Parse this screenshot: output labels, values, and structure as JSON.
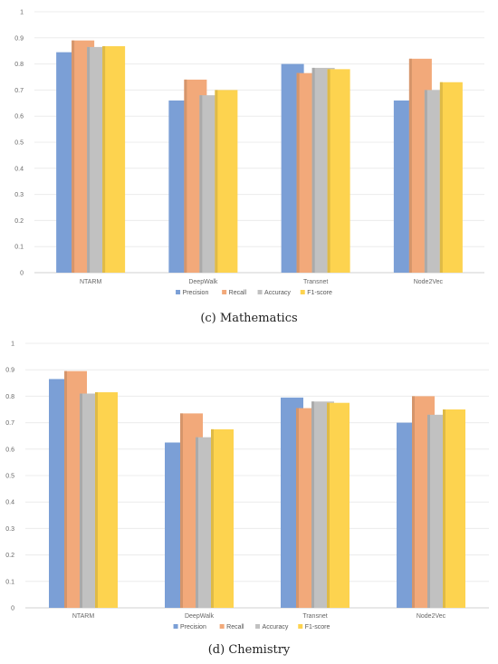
{
  "chart_data": [
    {
      "type": "bar",
      "caption": "(c) Mathematics",
      "categories": [
        "NTARM",
        "DeepWalk",
        "Transnet",
        "Node2Vec"
      ],
      "series": [
        {
          "name": "Precision",
          "color": "#7B9FD6",
          "values": [
            0.845,
            0.66,
            0.8,
            0.66
          ]
        },
        {
          "name": "Recall",
          "color": "#F2A97A",
          "values": [
            0.89,
            0.74,
            0.765,
            0.82
          ]
        },
        {
          "name": "Accuracy",
          "color": "#C1C1C1",
          "values": [
            0.865,
            0.68,
            0.785,
            0.7
          ]
        },
        {
          "name": "F1-score",
          "color": "#FDD34F",
          "values": [
            0.868,
            0.7,
            0.78,
            0.73
          ]
        }
      ],
      "ylim": [
        0,
        1
      ],
      "yticks": [
        "0",
        "0.1",
        "0.2",
        "0.3",
        "0.4",
        "0.5",
        "0.6",
        "0.7",
        "0.8",
        "0.9",
        "1"
      ],
      "grid": true,
      "legend_position": "bottom-center"
    },
    {
      "type": "bar",
      "caption": "(d) Chemistry",
      "categories": [
        "NTARM",
        "DeepWalk",
        "Transnet",
        "Node2Vec"
      ],
      "series": [
        {
          "name": "Precision",
          "color": "#7B9FD6",
          "values": [
            0.865,
            0.625,
            0.795,
            0.7
          ]
        },
        {
          "name": "Recall",
          "color": "#F2A97A",
          "values": [
            0.895,
            0.735,
            0.755,
            0.8
          ]
        },
        {
          "name": "Accuracy",
          "color": "#C1C1C1",
          "values": [
            0.81,
            0.645,
            0.78,
            0.73
          ]
        },
        {
          "name": "F1-score",
          "color": "#FDD34F",
          "values": [
            0.815,
            0.675,
            0.775,
            0.75
          ]
        }
      ],
      "ylim": [
        0,
        1
      ],
      "yticks": [
        "0",
        "0.1",
        "0.2",
        "0.3",
        "0.4",
        "0.5",
        "0.6",
        "0.7",
        "0.8",
        "0.9",
        "1"
      ],
      "grid": true,
      "legend_position": "bottom-center"
    }
  ]
}
